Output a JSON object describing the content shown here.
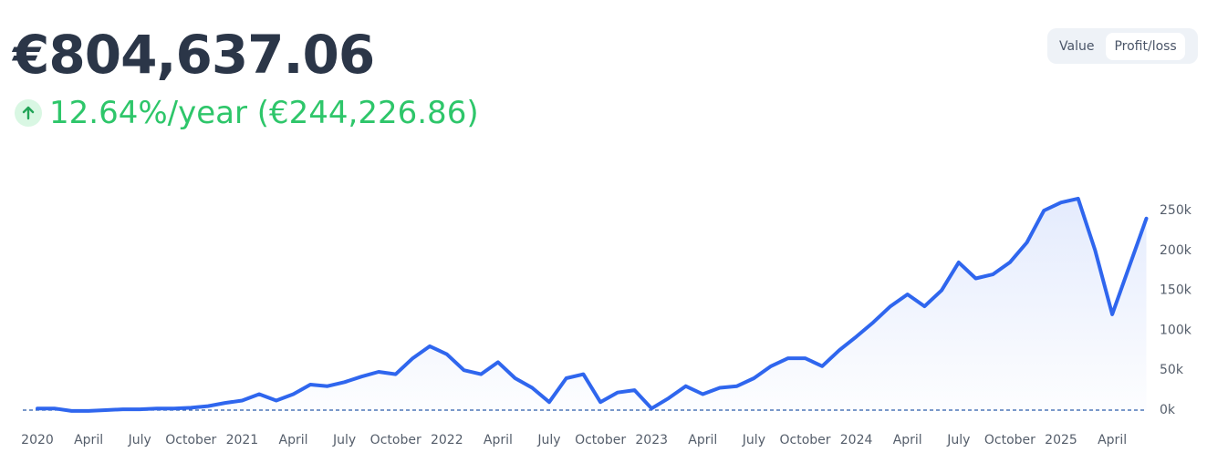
{
  "header": {
    "total": "€804,637.06",
    "performance": "12.64%/year (€244,226.86)"
  },
  "toggle": {
    "options": [
      "Value",
      "Profit/loss"
    ],
    "active": 1
  },
  "chart_data": {
    "type": "line",
    "x": [
      "2020-01",
      "2020-02",
      "2020-03",
      "2020-04",
      "2020-05",
      "2020-06",
      "2020-07",
      "2020-08",
      "2020-09",
      "2020-10",
      "2020-11",
      "2020-12",
      "2021-01",
      "2021-02",
      "2021-03",
      "2021-04",
      "2021-05",
      "2021-06",
      "2021-07",
      "2021-08",
      "2021-09",
      "2021-10",
      "2021-11",
      "2021-12",
      "2022-01",
      "2022-02",
      "2022-03",
      "2022-04",
      "2022-05",
      "2022-06",
      "2022-07",
      "2022-08",
      "2022-09",
      "2022-10",
      "2022-11",
      "2022-12",
      "2023-01",
      "2023-02",
      "2023-03",
      "2023-04",
      "2023-05",
      "2023-06",
      "2023-07",
      "2023-08",
      "2023-09",
      "2023-10",
      "2023-11",
      "2023-12",
      "2024-01",
      "2024-02",
      "2024-03",
      "2024-04",
      "2024-05",
      "2024-06",
      "2024-07",
      "2024-08",
      "2024-09",
      "2024-10",
      "2024-11",
      "2024-12",
      "2025-01",
      "2025-02",
      "2025-03",
      "2025-04",
      "2025-05",
      "2025-06"
    ],
    "series": [
      {
        "color": "#2f66ee",
        "values": [
          2000,
          2000,
          -1000,
          -1000,
          0,
          1000,
          1000,
          2000,
          2000,
          3000,
          5000,
          9000,
          12000,
          20000,
          12000,
          20000,
          32000,
          30000,
          35000,
          42000,
          48000,
          45000,
          65000,
          80000,
          70000,
          50000,
          45000,
          60000,
          40000,
          28000,
          10000,
          40000,
          45000,
          10000,
          22000,
          25000,
          2000,
          15000,
          30000,
          20000,
          28000,
          30000,
          40000,
          55000,
          65000,
          65000,
          55000,
          75000,
          92000,
          110000,
          130000,
          145000,
          130000,
          150000,
          185000,
          165000,
          170000,
          185000,
          210000,
          250000,
          260000,
          265000,
          200000,
          120000,
          180000,
          240000
        ]
      }
    ],
    "xticks": [
      {
        "value": "2020-01",
        "label": "2020"
      },
      {
        "value": "2020-04",
        "label": "April"
      },
      {
        "value": "2020-07",
        "label": "July"
      },
      {
        "value": "2020-10",
        "label": "October"
      },
      {
        "value": "2021-01",
        "label": "2021"
      },
      {
        "value": "2021-04",
        "label": "April"
      },
      {
        "value": "2021-07",
        "label": "July"
      },
      {
        "value": "2021-10",
        "label": "October"
      },
      {
        "value": "2022-01",
        "label": "2022"
      },
      {
        "value": "2022-04",
        "label": "April"
      },
      {
        "value": "2022-07",
        "label": "July"
      },
      {
        "value": "2022-10",
        "label": "October"
      },
      {
        "value": "2023-01",
        "label": "2023"
      },
      {
        "value": "2023-04",
        "label": "April"
      },
      {
        "value": "2023-07",
        "label": "July"
      },
      {
        "value": "2023-10",
        "label": "October"
      },
      {
        "value": "2024-01",
        "label": "2024"
      },
      {
        "value": "2024-04",
        "label": "April"
      },
      {
        "value": "2024-07",
        "label": "July"
      },
      {
        "value": "2024-10",
        "label": "October"
      },
      {
        "value": "2025-01",
        "label": "2025"
      },
      {
        "value": "2025-04",
        "label": "April"
      }
    ],
    "ylim": [
      0,
      250000
    ],
    "yticks": [
      {
        "value": 0,
        "label": "0k"
      },
      {
        "value": 50000,
        "label": "50k"
      },
      {
        "value": 100000,
        "label": "100k"
      },
      {
        "value": 150000,
        "label": "150k"
      },
      {
        "value": 200000,
        "label": "200k"
      },
      {
        "value": 250000,
        "label": "250k"
      }
    ]
  }
}
